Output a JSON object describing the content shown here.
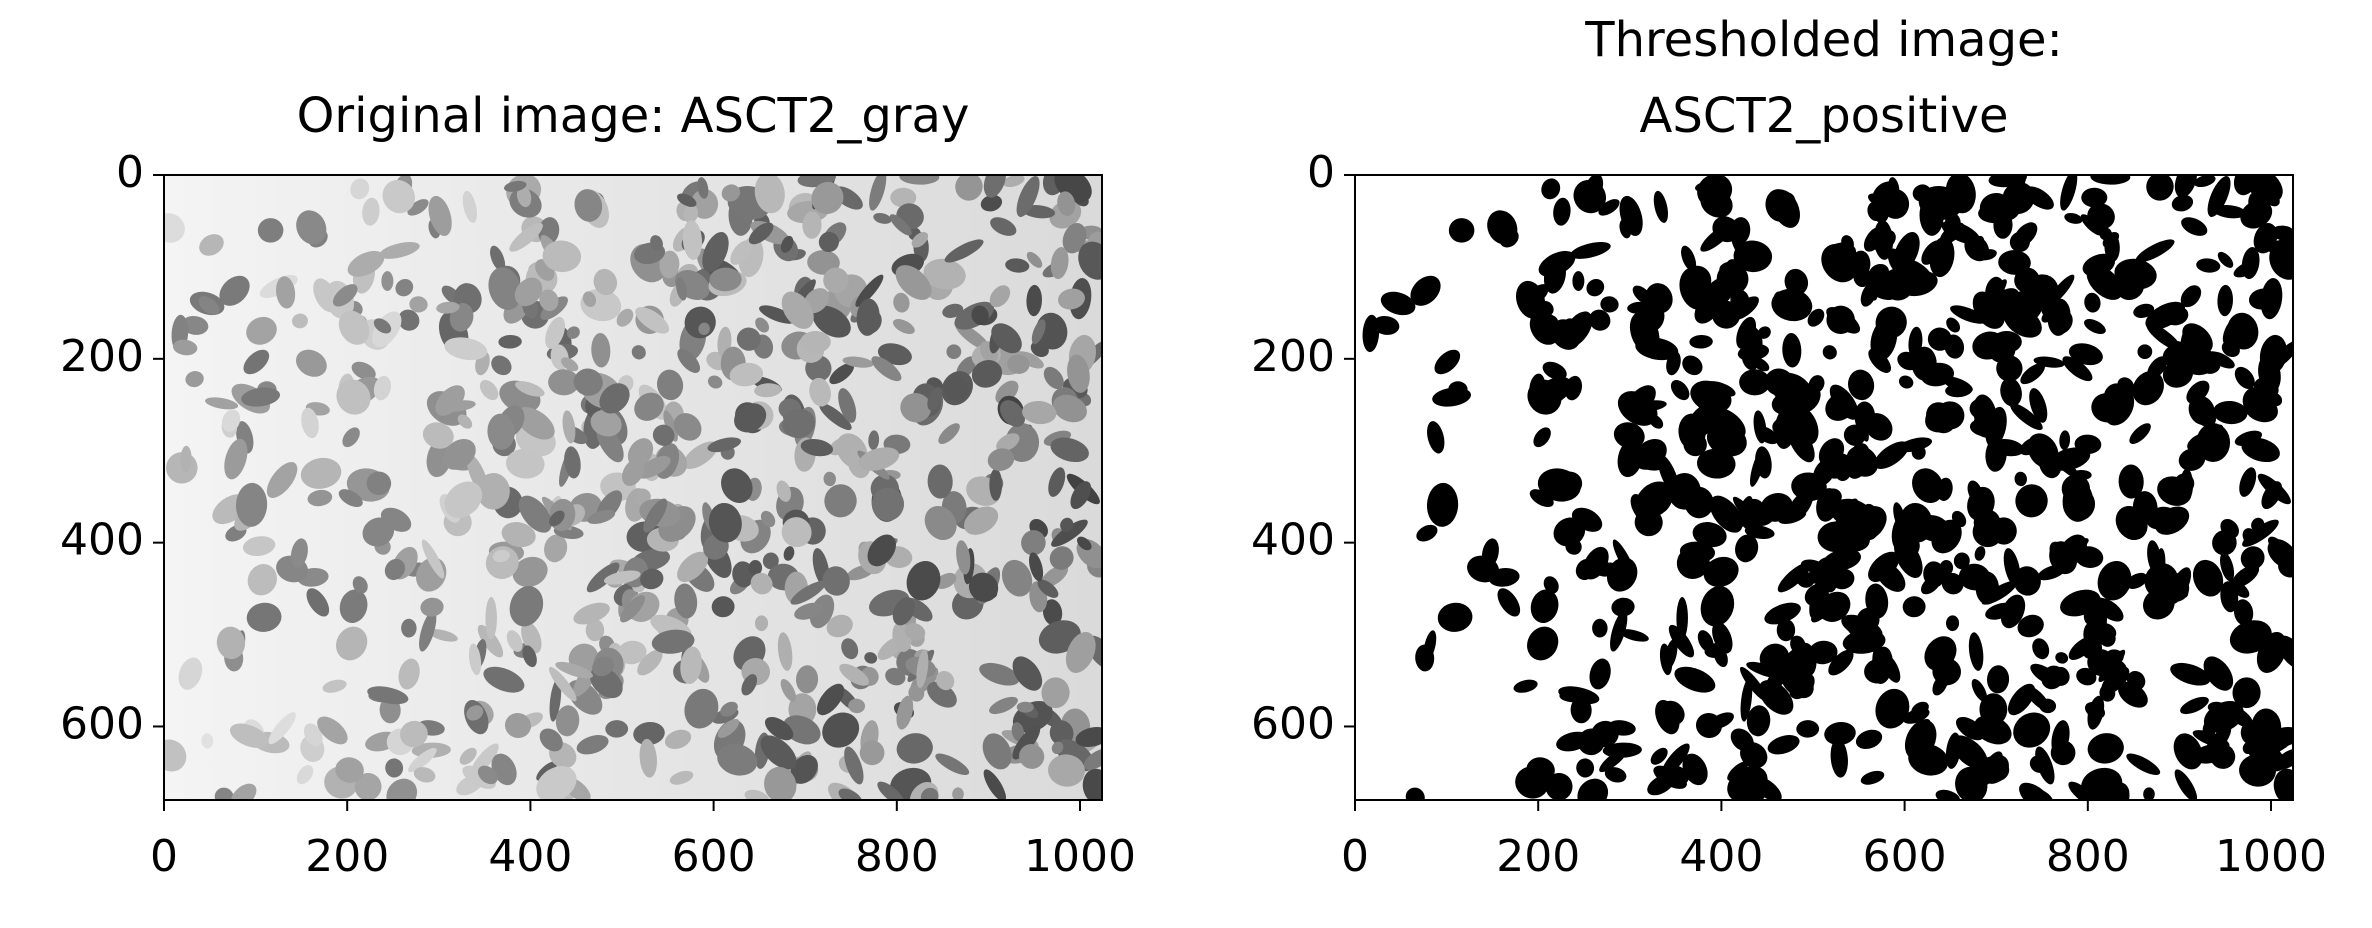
{
  "chart_data": [
    {
      "type": "image",
      "title": "Original image: ASCT2_gray",
      "style": "gray",
      "xlim": [
        0,
        1024
      ],
      "ylim": [
        680,
        0
      ],
      "xticks": [
        0,
        200,
        400,
        600,
        800,
        1000
      ],
      "yticks": [
        0,
        200,
        400,
        600
      ]
    },
    {
      "type": "image",
      "title": "Thresholded image:\nASCT2_positive",
      "style": "binary",
      "xlim": [
        0,
        1024
      ],
      "ylim": [
        680,
        0
      ],
      "xticks": [
        0,
        200,
        400,
        600,
        800,
        1000
      ],
      "yticks": [
        0,
        200,
        400,
        600
      ]
    }
  ]
}
